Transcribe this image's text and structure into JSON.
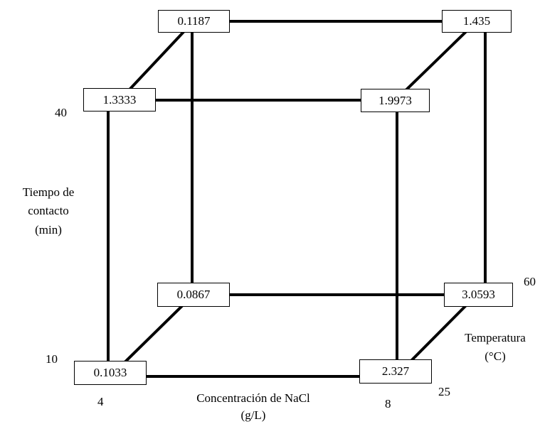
{
  "nodes": {
    "back_top_left": "0.1187",
    "back_top_right": "1.435",
    "front_top_left": "1.3333",
    "front_top_right": "1.9973",
    "back_bottom_left": "0.0867",
    "back_bottom_right": "3.0593",
    "front_bottom_left": "0.1033",
    "front_bottom_right": "2.327"
  },
  "axes": {
    "time": {
      "title_line1": "Tiempo de",
      "title_line2": "contacto",
      "title_line3": "(min)",
      "low": "10",
      "high": "40"
    },
    "concentration": {
      "title_line1": "Concentración de NaCl",
      "title_line2": "(g/L)",
      "low": "4",
      "high": "8"
    },
    "temperature": {
      "title_line1": "Temperatura",
      "title_line2": "(°C)",
      "low": "25",
      "high": "60"
    }
  },
  "colors": {
    "edge": "#000000",
    "node_border": "#000000",
    "background": "#ffffff"
  }
}
